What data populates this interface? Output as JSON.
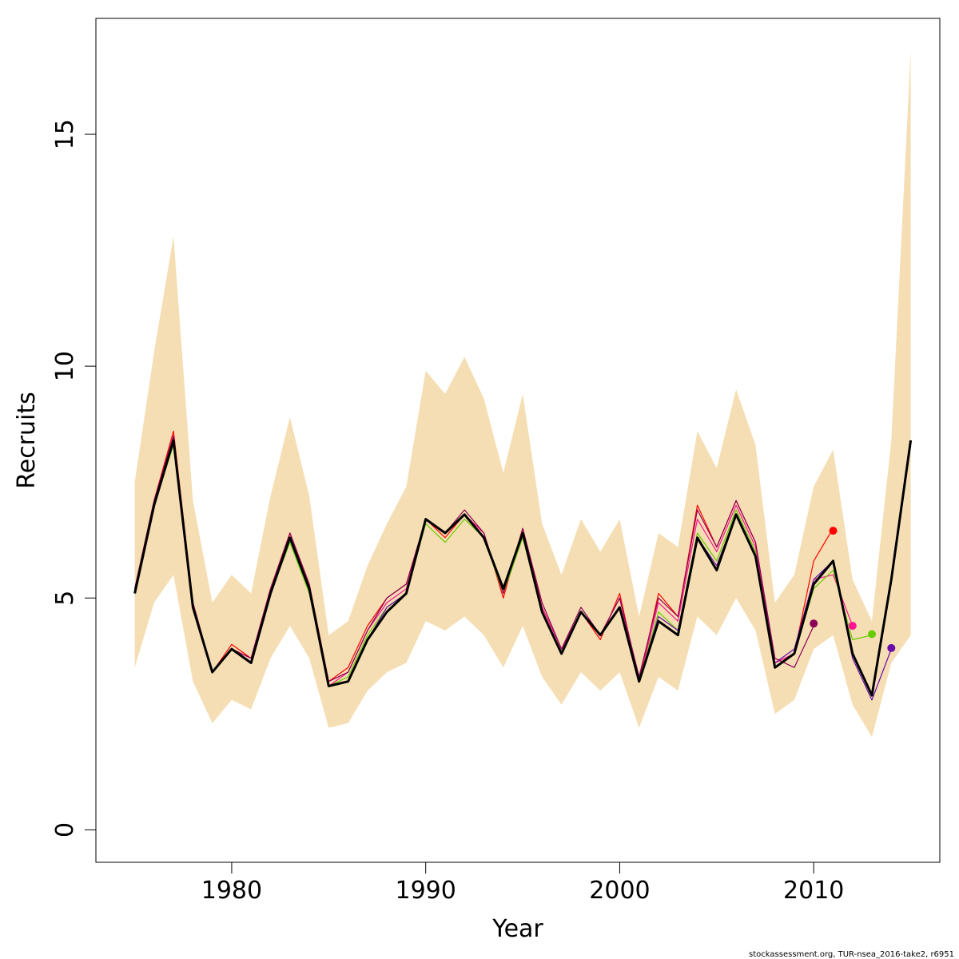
{
  "chart_data": {
    "type": "line",
    "xlabel": "Year",
    "ylabel": "Recruits",
    "xlim": [
      1973,
      2016.5
    ],
    "ylim": [
      -0.7,
      17.5
    ],
    "x_ticks": [
      "1980",
      "1990",
      "2000",
      "2010"
    ],
    "x_tick_values": [
      1980,
      1990,
      2000,
      2010
    ],
    "y_ticks": [
      "0",
      "5",
      "10",
      "15"
    ],
    "y_tick_values": [
      0,
      5,
      10,
      15
    ],
    "grid": false,
    "legend": "none",
    "colors": {
      "band": "#f5deb3",
      "main": "#000000",
      "retro": [
        "#ff0000",
        "#ff1493",
        "#66cc00",
        "#6a0dad",
        "#8b0057"
      ]
    },
    "confidence_band": {
      "x": [
        1975,
        1976,
        1977,
        1978,
        1979,
        1980,
        1981,
        1982,
        1983,
        1984,
        1985,
        1986,
        1987,
        1988,
        1989,
        1990,
        1991,
        1992,
        1993,
        1994,
        1995,
        1996,
        1997,
        1998,
        1999,
        2000,
        2001,
        2002,
        2003,
        2004,
        2005,
        2006,
        2007,
        2008,
        2009,
        2010,
        2011,
        2012,
        2013,
        2014,
        2015
      ],
      "lower": [
        3.5,
        4.9,
        5.5,
        3.2,
        2.3,
        2.8,
        2.6,
        3.7,
        4.4,
        3.7,
        2.2,
        2.3,
        3.0,
        3.4,
        3.6,
        4.5,
        4.3,
        4.6,
        4.2,
        3.5,
        4.4,
        3.3,
        2.7,
        3.4,
        3.0,
        3.4,
        2.2,
        3.3,
        3.0,
        4.6,
        4.2,
        5.0,
        4.3,
        2.5,
        2.8,
        3.9,
        4.2,
        2.7,
        2.0,
        3.6,
        4.2
      ],
      "upper": [
        7.5,
        10.3,
        12.8,
        7.1,
        4.9,
        5.5,
        5.1,
        7.2,
        8.9,
        7.2,
        4.2,
        4.5,
        5.7,
        6.6,
        7.4,
        9.9,
        9.4,
        10.2,
        9.3,
        7.7,
        9.4,
        6.6,
        5.5,
        6.7,
        6.0,
        6.7,
        4.6,
        6.4,
        6.1,
        8.6,
        7.8,
        9.5,
        8.3,
        4.9,
        5.5,
        7.4,
        8.2,
        5.4,
        4.5,
        8.4,
        16.8
      ]
    },
    "series": [
      {
        "x": [
          1975,
          1976,
          1977,
          1978,
          1979,
          1980,
          1981,
          1982,
          1983,
          1984,
          1985,
          1986,
          1987,
          1988,
          1989,
          1990,
          1991,
          1992,
          1993,
          1994,
          1995,
          1996,
          1997,
          1998,
          1999,
          2000,
          2001,
          2002,
          2003,
          2004,
          2005,
          2006,
          2007,
          2008,
          2009,
          2010,
          2011,
          2012,
          2013,
          2014,
          2015
        ],
        "values": [
          5.1,
          7.0,
          8.4,
          4.8,
          3.4,
          3.9,
          3.6,
          5.1,
          6.3,
          5.2,
          3.1,
          3.2,
          4.1,
          4.7,
          5.1,
          6.7,
          6.4,
          6.8,
          6.3,
          5.2,
          6.4,
          4.7,
          3.8,
          4.7,
          4.2,
          4.8,
          3.2,
          4.5,
          4.2,
          6.3,
          5.6,
          6.8,
          5.9,
          3.5,
          3.8,
          5.3,
          5.8,
          3.8,
          2.9,
          5.4,
          8.4
        ],
        "role": "main"
      },
      {
        "x": [
          1975,
          1976,
          1977,
          1978,
          1979,
          1980,
          1981,
          1982,
          1983,
          1984,
          1985,
          1986,
          1987,
          1988,
          1989,
          1990,
          1991,
          1992,
          1993,
          1994,
          1995,
          1996,
          1997,
          1998,
          1999,
          2000,
          2001,
          2002,
          2003,
          2004,
          2005,
          2006,
          2007,
          2008,
          2009,
          2010,
          2011
        ],
        "values": [
          5.2,
          7.1,
          8.6,
          4.9,
          3.4,
          4.0,
          3.7,
          5.2,
          6.4,
          5.3,
          3.2,
          3.5,
          4.4,
          5.0,
          5.3,
          6.7,
          6.3,
          6.8,
          6.4,
          5.0,
          6.5,
          4.8,
          3.9,
          4.7,
          4.1,
          5.1,
          3.2,
          5.1,
          4.6,
          7.0,
          6.1,
          7.1,
          6.2,
          3.6,
          3.8,
          5.8,
          6.5
        ],
        "role": "retro"
      },
      {
        "x": [
          1975,
          1976,
          1977,
          1978,
          1979,
          1980,
          1981,
          1982,
          1983,
          1984,
          1985,
          1986,
          1987,
          1988,
          1989,
          1990,
          1991,
          1992,
          1993,
          1994,
          1995,
          1996,
          1997,
          1998,
          1999,
          2000,
          2001,
          2002,
          2003,
          2004,
          2005,
          2006,
          2007,
          2008,
          2009,
          2010,
          2011,
          2012
        ],
        "values": [
          5.1,
          7.0,
          8.5,
          4.8,
          3.4,
          3.9,
          3.7,
          5.2,
          6.3,
          5.2,
          3.1,
          3.4,
          4.3,
          4.9,
          5.2,
          6.7,
          6.4,
          6.8,
          6.4,
          5.1,
          6.4,
          4.8,
          3.9,
          4.7,
          4.2,
          5.0,
          3.2,
          4.9,
          4.5,
          6.7,
          6.0,
          7.0,
          6.1,
          3.6,
          3.8,
          5.4,
          5.5,
          4.4
        ],
        "role": "retro"
      },
      {
        "x": [
          1975,
          1976,
          1977,
          1978,
          1979,
          1980,
          1981,
          1982,
          1983,
          1984,
          1985,
          1986,
          1987,
          1988,
          1989,
          1990,
          1991,
          1992,
          1993,
          1994,
          1995,
          1996,
          1997,
          1998,
          1999,
          2000,
          2001,
          2002,
          2003,
          2004,
          2005,
          2006,
          2007,
          2008,
          2009,
          2010,
          2011,
          2012,
          2013
        ],
        "values": [
          5.1,
          7.0,
          8.3,
          4.8,
          3.4,
          3.9,
          3.6,
          5.1,
          6.2,
          5.1,
          3.1,
          3.3,
          4.2,
          4.8,
          5.1,
          6.6,
          6.2,
          6.7,
          6.3,
          5.1,
          6.3,
          4.7,
          3.8,
          4.7,
          4.2,
          4.8,
          3.2,
          4.7,
          4.3,
          6.4,
          5.8,
          6.9,
          6.0,
          3.5,
          3.8,
          5.2,
          5.6,
          4.1,
          4.2
        ],
        "role": "retro"
      },
      {
        "x": [
          1975,
          1976,
          1977,
          1978,
          1979,
          1980,
          1981,
          1982,
          1983,
          1984,
          1985,
          1986,
          1987,
          1988,
          1989,
          1990,
          1991,
          1992,
          1993,
          1994,
          1995,
          1996,
          1997,
          1998,
          1999,
          2000,
          2001,
          2002,
          2003,
          2004,
          2005,
          2006,
          2007,
          2008,
          2009,
          2010,
          2011,
          2012,
          2013,
          2014
        ],
        "values": [
          5.1,
          7.0,
          8.4,
          4.8,
          3.4,
          3.9,
          3.6,
          5.1,
          6.3,
          5.2,
          3.1,
          3.2,
          4.1,
          4.8,
          5.1,
          6.7,
          6.4,
          6.8,
          6.3,
          5.2,
          6.4,
          4.7,
          3.8,
          4.7,
          4.2,
          4.8,
          3.2,
          4.6,
          4.3,
          6.3,
          5.7,
          6.8,
          5.9,
          3.6,
          3.9,
          5.4,
          5.8,
          3.7,
          2.8,
          3.9
        ],
        "role": "retro"
      },
      {
        "x": [
          1975,
          1976,
          1977,
          1978,
          1979,
          1980,
          1981,
          1982,
          1983,
          1984,
          1985,
          1986,
          1987,
          1988,
          1989,
          1990,
          1991,
          1992,
          1993,
          1994,
          1995,
          1996,
          1997,
          1998,
          1999,
          2000,
          2001,
          2002,
          2003,
          2004,
          2005,
          2006,
          2007,
          2008,
          2009,
          2010
        ],
        "values": [
          5.2,
          7.1,
          8.5,
          4.9,
          3.4,
          3.9,
          3.7,
          5.2,
          6.4,
          5.3,
          3.2,
          3.4,
          4.3,
          5.0,
          5.3,
          6.7,
          6.4,
          6.9,
          6.4,
          5.1,
          6.5,
          4.9,
          3.9,
          4.8,
          4.2,
          5.0,
          3.3,
          5.0,
          4.6,
          6.9,
          6.1,
          7.1,
          6.2,
          3.7,
          3.5,
          4.4
        ],
        "role": "retro"
      }
    ],
    "endpoints": [
      {
        "x": 2011,
        "y": 6.45
      },
      {
        "x": 2012,
        "y": 4.4
      },
      {
        "x": 2013,
        "y": 4.22
      },
      {
        "x": 2014,
        "y": 3.92
      },
      {
        "x": 2010,
        "y": 4.45
      }
    ]
  },
  "footer": {
    "source_text": "stockassessment.org, TUR-nsea_2016-take2, r6951"
  }
}
